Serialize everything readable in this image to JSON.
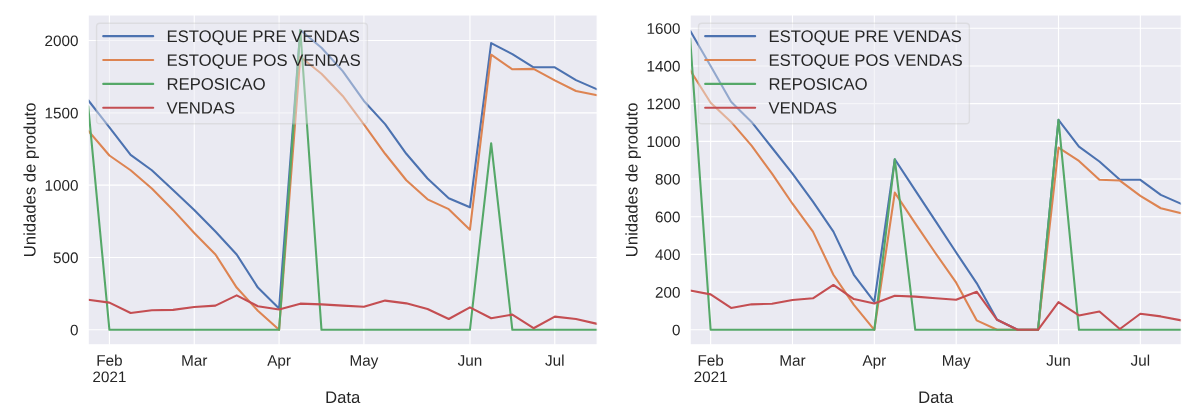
{
  "chart_data": [
    {
      "type": "line",
      "xlabel": "Data",
      "ylabel": "Unidades de produto",
      "legend": "top left",
      "grid": true,
      "x": [
        "2021-01-31",
        "2021-02-07",
        "2021-02-14",
        "2021-02-21",
        "2021-02-28",
        "2021-03-07",
        "2021-03-14",
        "2021-03-21",
        "2021-03-28",
        "2021-04-04",
        "2021-04-11",
        "2021-04-18",
        "2021-04-25",
        "2021-05-02",
        "2021-05-09",
        "2021-05-16",
        "2021-05-23",
        "2021-05-30",
        "2021-06-06",
        "2021-06-13",
        "2021-06-20",
        "2021-06-27",
        "2021-07-04",
        "2021-07-11",
        "2021-07-18"
      ],
      "xlim": [
        "2021-01-31",
        "2021-07-18"
      ],
      "xticks": [
        {
          "value": "2021-02-07",
          "label": "Feb\n2021"
        },
        {
          "value": "2021-03-07",
          "label": "Mar"
        },
        {
          "value": "2021-04-04",
          "label": "Apr"
        },
        {
          "value": "2021-05-02",
          "label": "May"
        },
        {
          "value": "2021-06-06",
          "label": "Jun"
        },
        {
          "value": "2021-07-04",
          "label": "Jul"
        }
      ],
      "ylim": [
        -104,
        2177
      ],
      "yticks": [
        0,
        500,
        1000,
        1500,
        2000
      ],
      "series": [
        {
          "name": "ESTOQUE PRE VENDAS",
          "color": "#4c72b0",
          "values": [
            1587,
            1400,
            1210,
            1103,
            966,
            829,
            680,
            521,
            292,
            148,
            2073,
            1950,
            1788,
            1582,
            1422,
            1217,
            1046,
            909,
            847,
            1982,
            1906,
            1815,
            1815,
            1726,
            1662
          ]
        },
        {
          "name": "ESTOQUE POS VENDAS",
          "color": "#dd8452",
          "values": [
            1377,
            1205,
            1103,
            977,
            829,
            669,
            521,
            292,
            132,
            0,
            1888,
            1770,
            1617,
            1420,
            1217,
            1034,
            902,
            834,
            692,
            1902,
            1801,
            1804,
            1724,
            1651,
            1621
          ]
        },
        {
          "name": "REPOSICAO",
          "color": "#55a868",
          "values": [
            1545,
            0,
            0,
            0,
            0,
            0,
            0,
            0,
            0,
            0,
            2073,
            0,
            0,
            0,
            0,
            0,
            0,
            0,
            0,
            1290,
            0,
            0,
            0,
            0,
            0
          ]
        },
        {
          "name": "VENDAS",
          "color": "#c44e52",
          "values": [
            208,
            188,
            116,
            135,
            138,
            158,
            167,
            238,
            163,
            140,
            181,
            176,
            167,
            159,
            202,
            183,
            144,
            75,
            155,
            80,
            105,
            11,
            91,
            75,
            41
          ]
        }
      ]
    },
    {
      "type": "line",
      "xlabel": "Data",
      "ylabel": "Unidades de produto",
      "legend": "top left",
      "grid": true,
      "x": [
        "2021-01-31",
        "2021-02-07",
        "2021-02-14",
        "2021-02-21",
        "2021-02-28",
        "2021-03-07",
        "2021-03-14",
        "2021-03-21",
        "2021-03-28",
        "2021-04-04",
        "2021-04-11",
        "2021-04-18",
        "2021-04-25",
        "2021-05-02",
        "2021-05-09",
        "2021-05-16",
        "2021-05-23",
        "2021-05-30",
        "2021-06-06",
        "2021-06-13",
        "2021-06-20",
        "2021-06-27",
        "2021-07-04",
        "2021-07-11",
        "2021-07-18"
      ],
      "xlim": [
        "2021-01-31",
        "2021-07-18"
      ],
      "xticks": [
        {
          "value": "2021-02-07",
          "label": "Feb\n2021"
        },
        {
          "value": "2021-03-07",
          "label": "Mar"
        },
        {
          "value": "2021-04-04",
          "label": "Apr"
        },
        {
          "value": "2021-05-02",
          "label": "May"
        },
        {
          "value": "2021-06-06",
          "label": "Jun"
        },
        {
          "value": "2021-07-04",
          "label": "Jul"
        }
      ],
      "ylim": [
        -80,
        1671
      ],
      "yticks": [
        0,
        200,
        400,
        600,
        800,
        1000,
        1200,
        1400,
        1600
      ],
      "series": [
        {
          "name": "ESTOQUE PRE VENDAS",
          "color": "#4c72b0",
          "values": [
            1587,
            1400,
            1210,
            1103,
            966,
            829,
            680,
            521,
            292,
            148,
            905,
            740,
            575,
            410,
            248,
            53,
            0,
            0,
            1114,
            972,
            893,
            796,
            796,
            716,
            668
          ]
        },
        {
          "name": "ESTOQUE POS VENDAS",
          "color": "#dd8452",
          "values": [
            1377,
            1205,
            1103,
            977,
            829,
            669,
            521,
            292,
            132,
            0,
            728,
            565,
            405,
            250,
            50,
            0,
            0,
            0,
            967,
            896,
            796,
            792,
            711,
            645,
            618
          ]
        },
        {
          "name": "REPOSICAO",
          "color": "#55a868",
          "values": [
            1545,
            0,
            0,
            0,
            0,
            0,
            0,
            0,
            0,
            0,
            905,
            0,
            0,
            0,
            0,
            0,
            0,
            0,
            1114,
            0,
            0,
            0,
            0,
            0,
            0
          ]
        },
        {
          "name": "VENDAS",
          "color": "#c44e52",
          "values": [
            208,
            188,
            116,
            135,
            138,
            158,
            167,
            238,
            163,
            140,
            181,
            176,
            167,
            159,
            202,
            53,
            0,
            0,
            147,
            76,
            97,
            4,
            85,
            71,
            50
          ]
        }
      ]
    }
  ]
}
